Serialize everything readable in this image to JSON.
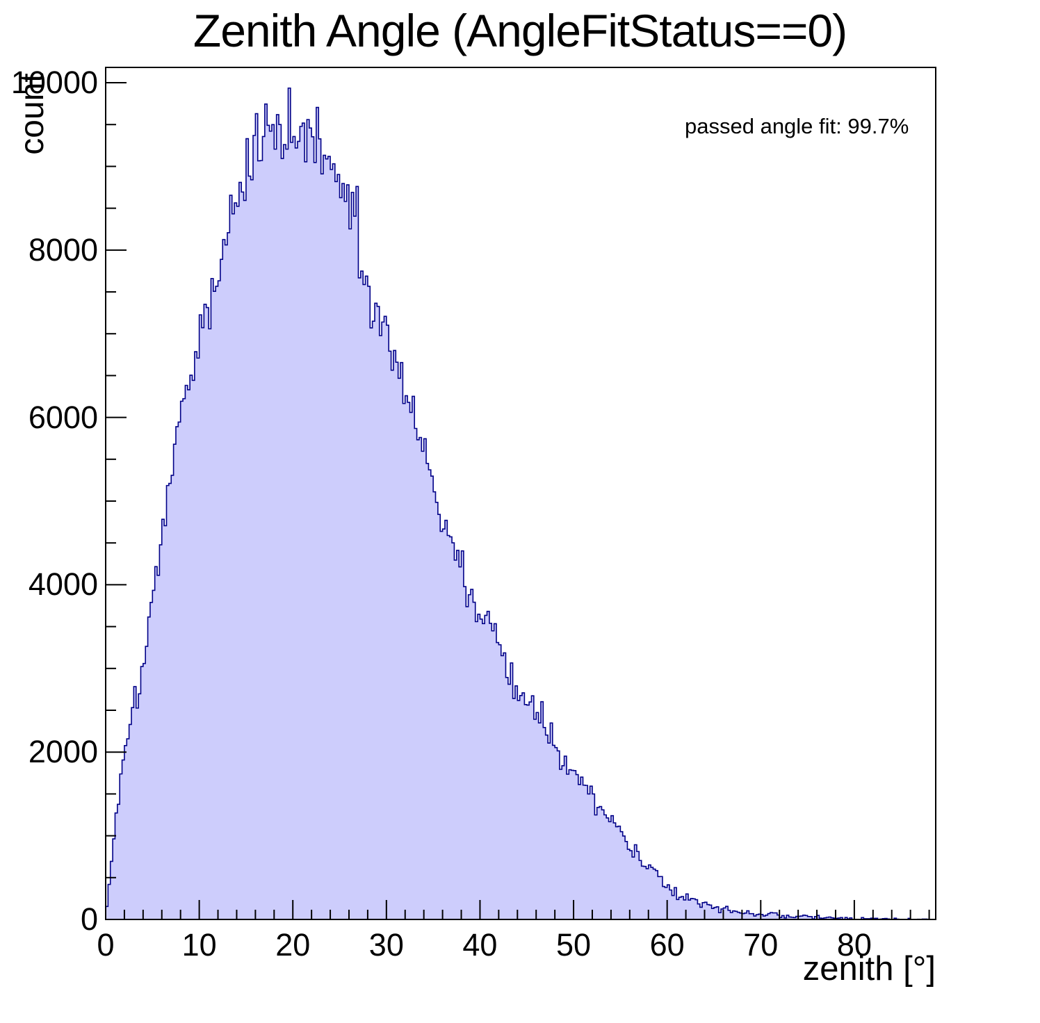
{
  "title": "Zenith Angle (AngleFitStatus==0)",
  "annotation": "passed angle fit: 99.7%",
  "x_axis": {
    "label": "zenith [°]",
    "major_ticks": [
      0,
      10,
      20,
      30,
      40,
      50,
      60,
      70,
      80
    ],
    "minor_step": 2,
    "range": [
      0,
      88.7
    ]
  },
  "y_axis": {
    "label": "count",
    "major_ticks": [
      0,
      2000,
      4000,
      6000,
      8000,
      10000
    ],
    "minor_step": 500,
    "range": [
      0,
      10183
    ]
  },
  "colors": {
    "fill": "#cdcdfc",
    "line": "#000087",
    "frame": "#000000",
    "background": "#ffffff",
    "text": "#000000"
  },
  "chart_data": {
    "type": "histogram",
    "title": "Zenith Angle (AngleFitStatus==0)",
    "xlabel": "zenith [°]",
    "ylabel": "count",
    "legend": "none",
    "grid": false,
    "passed_angle_fit_percent": 99.7,
    "xlim": [
      0,
      88.7
    ],
    "ylim": [
      0,
      10183
    ],
    "bin_width_deg": 0.25,
    "envelope_start_deg": 0,
    "envelope_step_deg": 0.5,
    "envelope_counts": [
      30,
      560,
      1120,
      1620,
      2060,
      2400,
      2630,
      2830,
      3100,
      3430,
      3760,
      4160,
      4570,
      5010,
      5400,
      5760,
      6070,
      6280,
      6500,
      6730,
      6930,
      7150,
      7360,
      7570,
      7760,
      7950,
      8130,
      8310,
      8480,
      8650,
      8810,
      8960,
      9100,
      9230,
      9340,
      9430,
      9450,
      9400,
      9430,
      9450,
      9430,
      9390,
      9410,
      9440,
      9390,
      9350,
      9260,
      9150,
      9010,
      8870,
      8730,
      8580,
      8420,
      8250,
      8070,
      7890,
      7720,
      7550,
      7370,
      7190,
      7010,
      6840,
      6670,
      6490,
      6310,
      6130,
      5940,
      5750,
      5570,
      5380,
      5200,
      5020,
      4850,
      4680,
      4500,
      4340,
      4190,
      4050,
      3930,
      3810,
      3690,
      3560,
      3440,
      3320,
      3200,
      3090,
      2980,
      2880,
      2780,
      2680,
      2580,
      2490,
      2400,
      2320,
      2240,
      2160,
      2080,
      2000,
      1920,
      1840,
      1760,
      1680,
      1600,
      1530,
      1450,
      1380,
      1310,
      1240,
      1170,
      1100,
      1030,
      960,
      890,
      820,
      750,
      690,
      630,
      570,
      520,
      470,
      425,
      385,
      350,
      315,
      285,
      258,
      232,
      208,
      188,
      168,
      152,
      138,
      125,
      114,
      104,
      95,
      87,
      80,
      74,
      68,
      63,
      58,
      54,
      50,
      46,
      42,
      39,
      36,
      33,
      31,
      29,
      27,
      25,
      23,
      21,
      20,
      18,
      17,
      16,
      14,
      13,
      12,
      11,
      10,
      9,
      8,
      8,
      7,
      6,
      6,
      5,
      5,
      4,
      4,
      3,
      3,
      2,
      2
    ],
    "outlier_bins": [
      {
        "deg": 16.125,
        "value": 9630
      },
      {
        "deg": 17.125,
        "value": 9745
      },
      {
        "deg": 21.625,
        "value": 9560
      },
      {
        "deg": 22.625,
        "value": 9705
      },
      {
        "deg": 26.875,
        "value": 8760
      },
      {
        "deg": 28.375,
        "value": 7070
      },
      {
        "deg": 28.625,
        "value": 7150
      },
      {
        "deg": 32.375,
        "value": 6180
      },
      {
        "deg": 32.625,
        "value": 6060
      }
    ],
    "max_bin_value": 9745,
    "noise": {
      "seed": 1337,
      "sigma_scale": 2.1
    }
  }
}
